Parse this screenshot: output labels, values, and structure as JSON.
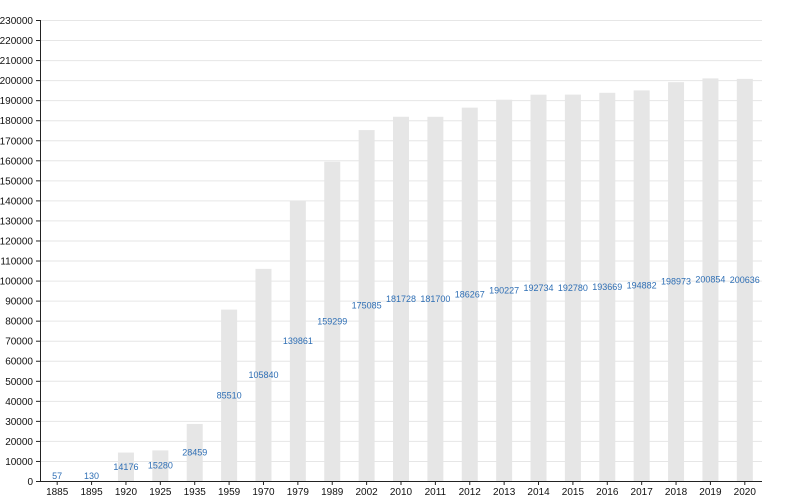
{
  "chart_data": {
    "type": "bar",
    "categories": [
      "1885",
      "1895",
      "1920",
      "1925",
      "1935",
      "1959",
      "1970",
      "1979",
      "1989",
      "2002",
      "2010",
      "2011",
      "2012",
      "2013",
      "2014",
      "2015",
      "2016",
      "2017",
      "2018",
      "2019",
      "2020"
    ],
    "values": [
      57,
      130,
      14176,
      15280,
      28459,
      85510,
      105840,
      139861,
      159299,
      175085,
      181728,
      181700,
      186267,
      190227,
      192734,
      192780,
      193669,
      194882,
      198973,
      200854,
      200636
    ],
    "data_labels": [
      "57",
      "130",
      "14176",
      "15280",
      "28459",
      "85510",
      "105840",
      "139861",
      "159299",
      "175085",
      "181728",
      "181700",
      "186267",
      "190227",
      "192734",
      "192780",
      "193669",
      "194882",
      "198973",
      "200854",
      "200636"
    ],
    "ylim": [
      0,
      230000
    ],
    "y_ticks": [
      "0",
      "10000",
      "20000",
      "30000",
      "40000",
      "50000",
      "60000",
      "70000",
      "80000",
      "90000",
      "100000",
      "110000",
      "120000",
      "130000",
      "140000",
      "150000",
      "160000",
      "170000",
      "180000",
      "190000",
      "200000",
      "210000",
      "220000",
      "230000"
    ],
    "grid": true,
    "colors": {
      "bar": "#e6e6e6",
      "label": "#2f6fb5"
    }
  }
}
